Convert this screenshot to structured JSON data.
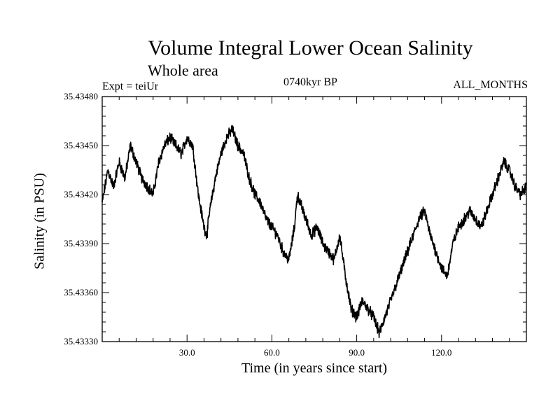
{
  "chart_data": {
    "type": "line",
    "title": "Volume Integral Lower Ocean Salinity",
    "subtitle": "Whole area",
    "annotations": {
      "expt": "Expt = teiUr",
      "period": "0740kyr BP",
      "months": "ALL_MONTHS"
    },
    "xlabel": "Time (in years since start)",
    "ylabel": "Salinity (in PSU)",
    "xlim": [
      0,
      150
    ],
    "ylim": [
      35.4333,
      35.4348
    ],
    "xticks": [
      30,
      60,
      90,
      120
    ],
    "xtick_labels": [
      "30.0",
      "60.0",
      "90.0",
      "120.0"
    ],
    "yticks": [
      35.4333,
      35.4336,
      35.4339,
      35.4342,
      35.4345,
      35.4348
    ],
    "ytick_labels": [
      "35.43330",
      "35.43360",
      "35.43390",
      "35.43420",
      "35.43450",
      "35.43480"
    ],
    "grid": false,
    "series": [
      {
        "name": "salinity",
        "x": [
          0,
          2,
          4,
          6,
          8,
          10,
          12,
          14,
          16,
          18,
          20,
          22,
          24,
          26,
          28,
          30,
          32,
          34,
          36,
          37,
          38,
          40,
          42,
          44,
          46,
          48,
          50,
          52,
          54,
          56,
          58,
          60,
          62,
          64,
          66,
          68,
          69,
          70,
          72,
          74,
          76,
          78,
          80,
          82,
          84,
          86,
          88,
          90,
          92,
          94,
          96,
          98,
          100,
          102,
          104,
          106,
          108,
          110,
          112,
          114,
          116,
          118,
          120,
          122,
          124,
          126,
          128,
          130,
          132,
          134,
          136,
          138,
          140,
          142,
          144,
          146,
          148,
          150
        ],
        "values": [
          35.43415,
          35.43435,
          35.43425,
          35.4344,
          35.4343,
          35.4345,
          35.4344,
          35.4343,
          35.43425,
          35.4342,
          35.4344,
          35.4345,
          35.43455,
          35.4345,
          35.43445,
          35.43455,
          35.4345,
          35.4342,
          35.434,
          35.43395,
          35.4341,
          35.4343,
          35.43445,
          35.43455,
          35.4346,
          35.4345,
          35.43445,
          35.4343,
          35.4342,
          35.43415,
          35.43405,
          35.434,
          35.43395,
          35.43385,
          35.4338,
          35.434,
          35.4342,
          35.43415,
          35.43405,
          35.43395,
          35.434,
          35.4339,
          35.43385,
          35.4338,
          35.43395,
          35.4337,
          35.4335,
          35.43345,
          35.43355,
          35.4335,
          35.43345,
          35.43335,
          35.43345,
          35.43355,
          35.43365,
          35.43375,
          35.43385,
          35.43395,
          35.43405,
          35.4341,
          35.43395,
          35.43385,
          35.43375,
          35.4337,
          35.4339,
          35.434,
          35.43405,
          35.4341,
          35.43405,
          35.434,
          35.4341,
          35.4342,
          35.4343,
          35.4344,
          35.43435,
          35.43425,
          35.4342,
          35.43425
        ]
      }
    ]
  }
}
